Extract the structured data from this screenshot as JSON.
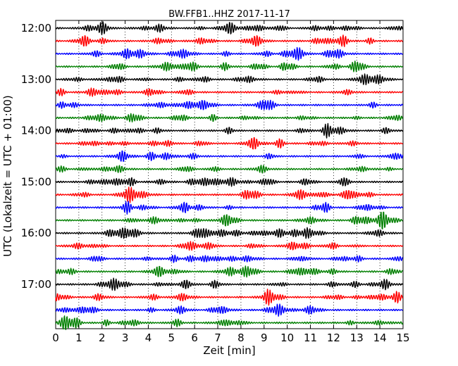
{
  "chart_data": {
    "type": "line",
    "title": "BW.FFB1..HHZ 2017-11-17",
    "xlabel": "Zeit  [min]",
    "ylabel": "UTC (Lokalzeit = UTC + 01:00)",
    "xlim": [
      0,
      15
    ],
    "x_ticks": [
      "0",
      "1",
      "2",
      "3",
      "4",
      "5",
      "6",
      "7",
      "8",
      "9",
      "10",
      "11",
      "12",
      "13",
      "14",
      "15"
    ],
    "y_ticks": [
      "12:00",
      "13:00",
      "14:00",
      "15:00",
      "16:00",
      "17:00"
    ],
    "grid": "vertical dotted",
    "trace_interval_min": 15,
    "trace_count": 24,
    "trace_colors": [
      "#000000",
      "#ff0000",
      "#0000ff",
      "#007f00"
    ]
  }
}
